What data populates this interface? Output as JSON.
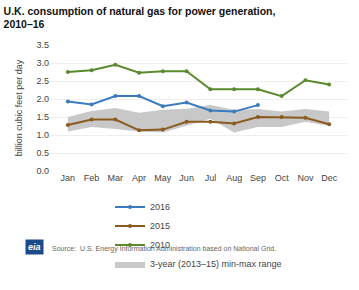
{
  "chart_data": {
    "type": "line",
    "title": "U.K. consumption of natural gas for power generation,",
    "subtitle": "2010–16",
    "ylabel": "billion cubic feet per day",
    "annotations": [
      "Source:  U.S. Energy Information Administration based on National Grid.",
      "eia"
    ],
    "categories": [
      "Jan",
      "Feb",
      "Mar",
      "Apr",
      "May",
      "Jun",
      "Jul",
      "Aug",
      "Sep",
      "Oct",
      "Nov",
      "Dec"
    ],
    "series": [
      {
        "name": "3-year (2013–15) min-max range",
        "type": "range",
        "color": "#c8c8c8",
        "lower": [
          1.1,
          1.22,
          1.17,
          1.1,
          1.07,
          1.25,
          1.45,
          1.07,
          1.22,
          1.22,
          1.37,
          1.25
        ],
        "upper": [
          1.5,
          1.67,
          1.75,
          1.62,
          1.7,
          1.73,
          1.83,
          1.7,
          1.72,
          1.65,
          1.72,
          1.65
        ]
      },
      {
        "name": "2010",
        "type": "line",
        "marker": "circle",
        "color": "#5a8a2e",
        "values": [
          2.75,
          2.8,
          2.95,
          2.73,
          2.77,
          2.77,
          2.27,
          2.27,
          2.27,
          2.08,
          2.52,
          2.4
        ]
      },
      {
        "name": "2015",
        "type": "line",
        "marker": "circle",
        "color": "#8b5a1e",
        "values": [
          1.28,
          1.43,
          1.43,
          1.13,
          1.15,
          1.37,
          1.37,
          1.32,
          1.5,
          1.5,
          1.48,
          1.3
        ]
      },
      {
        "name": "2016",
        "type": "line",
        "marker": "circle",
        "color": "#3a7bbf",
        "values": [
          1.93,
          1.85,
          2.08,
          2.08,
          1.8,
          1.9,
          1.68,
          1.65,
          1.83,
          null,
          null,
          null
        ]
      }
    ],
    "ylim": [
      0.0,
      3.5
    ],
    "yticks": [
      {
        "value": 0.0,
        "label": "0.0"
      },
      0.5,
      {
        "value": 1.0,
        "label": "1.0"
      },
      1.5,
      {
        "value": 2.0,
        "label": "2.0"
      },
      2.5,
      {
        "value": 3.0,
        "label": "3.0"
      },
      3.5
    ],
    "grid": true,
    "legend": "bottom"
  }
}
